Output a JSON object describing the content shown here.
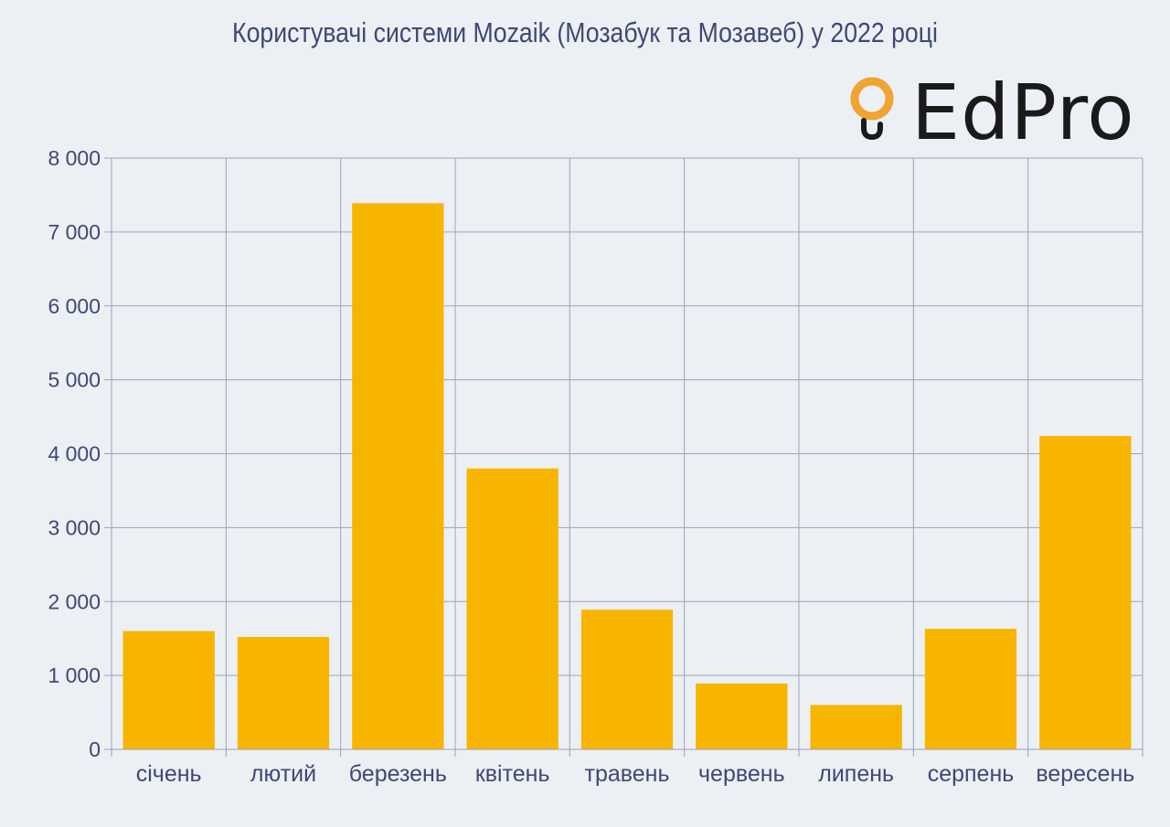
{
  "header": {
    "title": "Користувачі системи Mozaik (Мозабук та Мозавеб) у 2022 році"
  },
  "logo": {
    "text": "EdPro",
    "mark_icon": "lightbulb-ring-icon",
    "mark_color": "#f0a431"
  },
  "chart_data": {
    "type": "bar",
    "title": "Користувачі системи Mozaik (Мозабук та Мозавеб) у 2022 році",
    "xlabel": "",
    "ylabel": "",
    "categories": [
      "січень",
      "лютий",
      "березень",
      "квітень",
      "травень",
      "червень",
      "липень",
      "серпень",
      "вересень"
    ],
    "values": [
      1600,
      1520,
      7390,
      3800,
      1890,
      890,
      600,
      1630,
      4240
    ],
    "ylim": [
      0,
      8000
    ],
    "yticks": [
      0,
      1000,
      2000,
      3000,
      4000,
      5000,
      6000,
      7000,
      8000
    ],
    "ytick_labels": [
      "0",
      "1 000",
      "2 000",
      "3 000",
      "4 000",
      "5 000",
      "6 000",
      "7 000",
      "8 000"
    ],
    "grid": true,
    "colors": {
      "bar": "#f7b500",
      "grid": "#9ba3c0",
      "axis": "#9aa0b8",
      "text": "#3f4872"
    }
  }
}
